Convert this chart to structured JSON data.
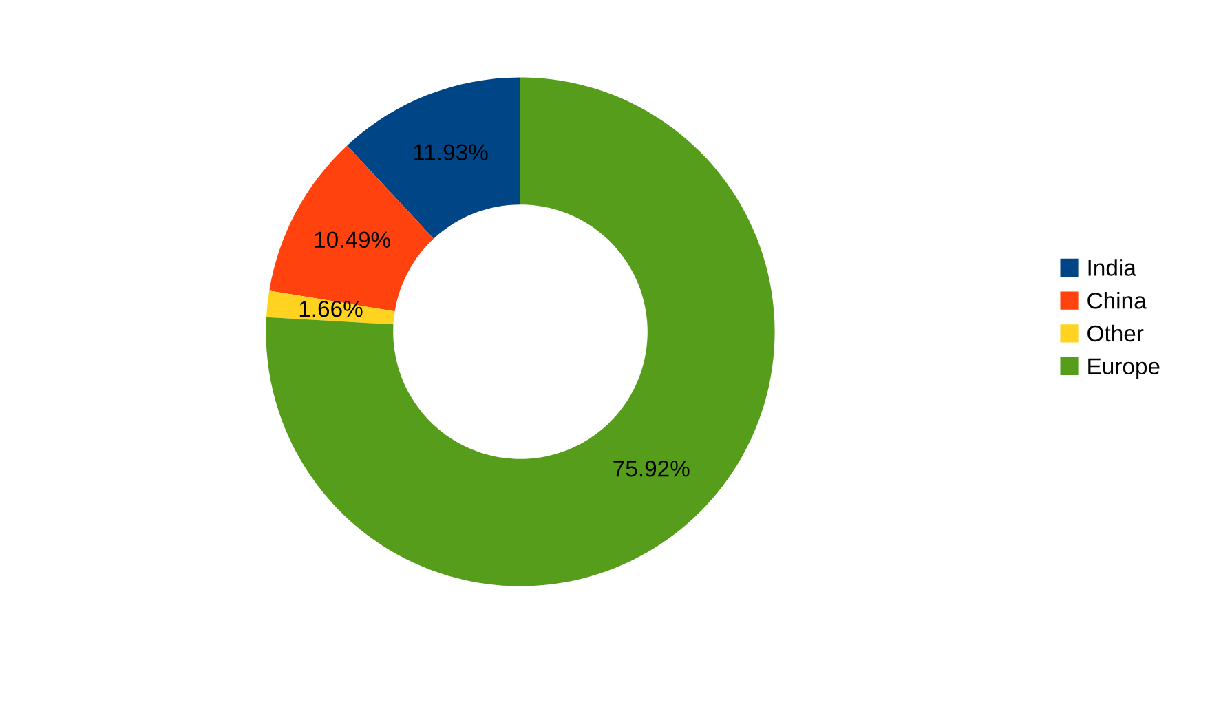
{
  "chart_data": {
    "type": "donut",
    "categories": [
      "India",
      "China",
      "Other",
      "Europe"
    ],
    "values": [
      11.93,
      10.49,
      1.66,
      75.92
    ],
    "colors": [
      "#004586",
      "#ff420e",
      "#ffd320",
      "#579d1c"
    ],
    "value_labels": [
      "11.93%",
      "10.49%",
      "1.66%",
      "75.92%"
    ],
    "legend": "right"
  }
}
